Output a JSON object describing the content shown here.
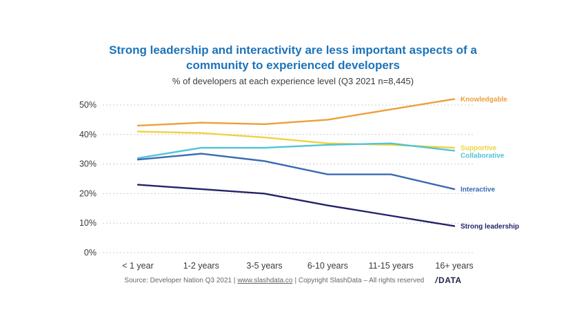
{
  "header": {
    "title_line1": "Strong leadership and interactivity are less important aspects of a",
    "title_line2": "community to experienced developers",
    "subtitle": "% of developers at each experience level (Q3 2021 n=8,445)"
  },
  "chart_data": {
    "type": "line",
    "categories": [
      "< 1 year",
      "1-2 years",
      "3-5 years",
      "6-10 years",
      "11-15 years",
      "16+ years"
    ],
    "series": [
      {
        "name": "Knowledgable",
        "color": "#EE9E3B",
        "values": [
          43,
          44,
          43.5,
          45,
          48.5,
          52
        ]
      },
      {
        "name": "Supportive",
        "color": "#EFD23D",
        "values": [
          41,
          40.5,
          39,
          37,
          36.5,
          35.5
        ]
      },
      {
        "name": "Collaborative",
        "color": "#4FC4D9",
        "values": [
          32,
          35.5,
          35.5,
          36.5,
          37,
          34.5
        ]
      },
      {
        "name": "Interactive",
        "color": "#3A6AB4",
        "values": [
          31.5,
          33.5,
          31,
          26.5,
          26.5,
          21.5
        ]
      },
      {
        "name": "Strong leadership",
        "color": "#232268",
        "values": [
          23,
          21.5,
          20,
          16,
          12.5,
          9
        ]
      }
    ],
    "ylim": [
      0,
      50
    ],
    "ytick_step": 10,
    "ytick_suffix": "%",
    "grid": "dashed horizontal gridlines at each 10%",
    "legend_position": "colored labels at right end of each line",
    "title": "Strong leadership and interactivity are less important aspects of a community to experienced developers",
    "xlabel": "",
    "ylabel": ""
  },
  "footer": {
    "source_prefix": "Source: Developer Nation Q3 2021 |",
    "link": "www.slashdata.co",
    "source_suffix": "| Copyright SlashData – All rights reserved",
    "logo_slash": "/",
    "logo_text": "DATA"
  },
  "colors": {
    "title": "#1C73B9",
    "subtitle": "#3C3C3C",
    "grid": "#CCCCCC",
    "axis_text": "#3A3A3A",
    "footer_text": "#666666",
    "logo": "#1E2347"
  }
}
